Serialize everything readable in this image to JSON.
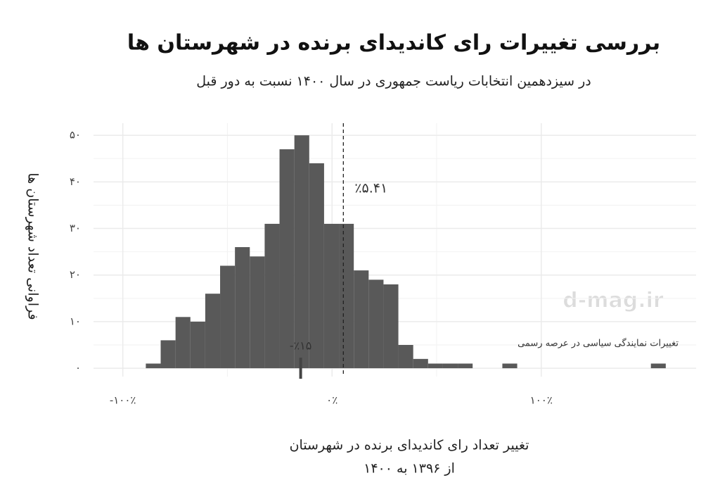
{
  "chart_data": {
    "type": "histogram",
    "title": "بررسی تغییرات رای کاندیدای برنده در شهرستان ها",
    "subtitle": "در سیزدهمین انتخابات ریاست جمهوری در سال ۱۴۰۰ نسبت به دور قبل",
    "x_label": [
      "تغییر تعداد رای کاندیدای برنده در شهرستان",
      "از ۱۳۹۶ به ۱۴۰۰"
    ],
    "y_label": "فراوانی تعداد شهرستان ها",
    "bins": [
      -89,
      -81.9,
      -74.8,
      -67.7,
      -60.6,
      -53.5,
      -46.4,
      -39.3,
      -32.2,
      -25.1,
      -18,
      -10.9,
      -3.8,
      3.3,
      10.4,
      17.5,
      24.6,
      31.7,
      38.8,
      45.9,
      53,
      60.1,
      67.2,
      74.3,
      81.4,
      88.5,
      95.6,
      102.7,
      109.8,
      116.9,
      124,
      131.1,
      138.2,
      145.3,
      152.4,
      159.5
    ],
    "values": [
      1,
      6,
      11,
      10,
      16,
      22,
      26,
      24,
      31,
      47,
      50,
      44,
      31,
      31,
      21,
      19,
      18,
      5,
      2,
      1,
      1,
      1,
      0,
      0,
      1,
      0,
      0,
      0,
      0,
      0,
      0,
      0,
      0,
      0,
      1
    ],
    "color": "#595959",
    "xlim": [
      -114,
      174
    ],
    "ylim": [
      -1.8,
      52.6
    ],
    "xticks": [
      {
        "value": -100,
        "label": "-۱۰۰٪"
      },
      {
        "value": 0,
        "label": "۰٪"
      },
      {
        "value": 100,
        "label": "۱۰۰٪"
      }
    ],
    "yticks": [
      {
        "value": 0,
        "label": "۰"
      },
      {
        "value": 10,
        "label": "۱۰"
      },
      {
        "value": 20,
        "label": "۲۰"
      },
      {
        "value": 30,
        "label": "۳۰"
      },
      {
        "value": 40,
        "label": "۴۰"
      },
      {
        "value": 50,
        "label": "۵۰"
      }
    ],
    "grid": true,
    "mean_line": {
      "value": 5.41,
      "label": "٪۵.۴۱"
    },
    "marker": {
      "value": -15,
      "label": "-٪۱۵"
    },
    "annotation": "تغییرات نمایندگی سیاسی در عرصه رسمی",
    "watermark": "d-mag.ir"
  }
}
